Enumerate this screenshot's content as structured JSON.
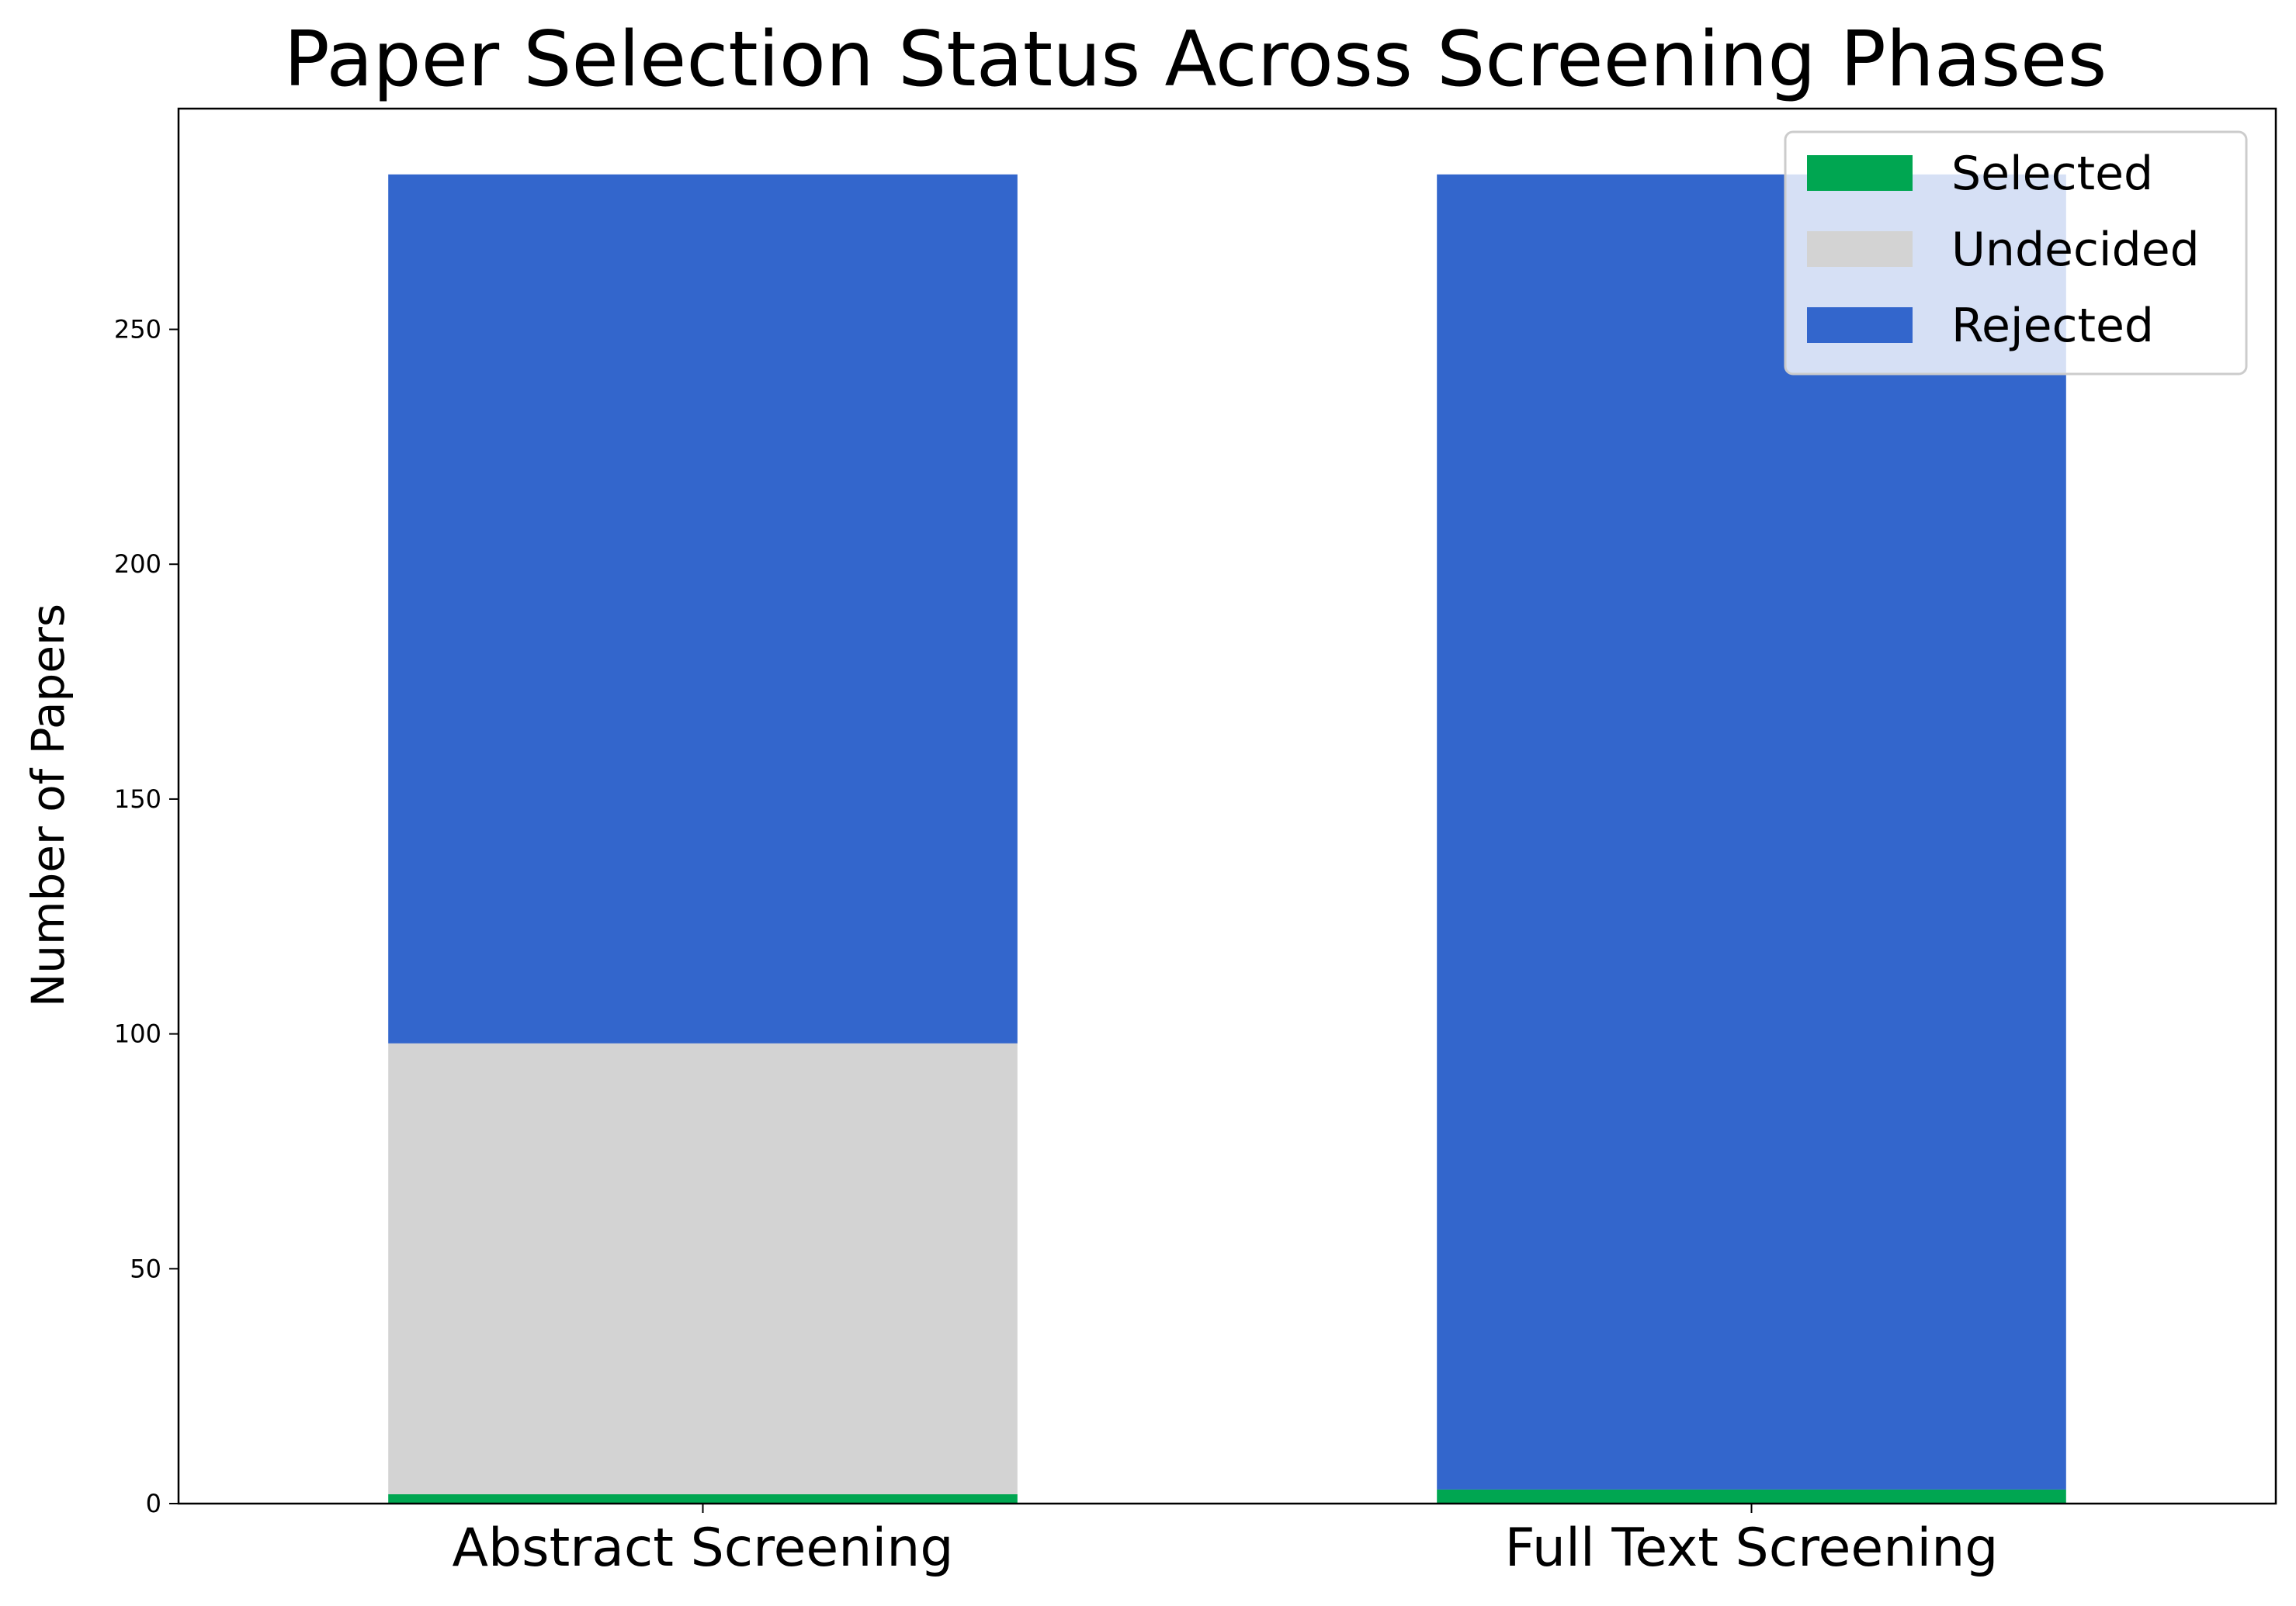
{
  "chart_data": {
    "type": "bar",
    "stacked": true,
    "title": "Paper Selection Status Across Screening Phases",
    "xlabel": "",
    "ylabel": "Number of Papers",
    "categories": [
      "Abstract Screening",
      "Full Text Screening"
    ],
    "series": [
      {
        "name": "Selected",
        "values": [
          2,
          3
        ],
        "color": "#00a651"
      },
      {
        "name": "Undecided",
        "values": [
          96,
          0
        ],
        "color": "#d3d3d3"
      },
      {
        "name": "Rejected",
        "values": [
          185,
          280
        ],
        "color": "#3366cc"
      }
    ],
    "ylim": [
      0,
      297
    ],
    "yticks": [
      0,
      50,
      100,
      150,
      200,
      250
    ],
    "grid": false,
    "legend": "top-right"
  }
}
